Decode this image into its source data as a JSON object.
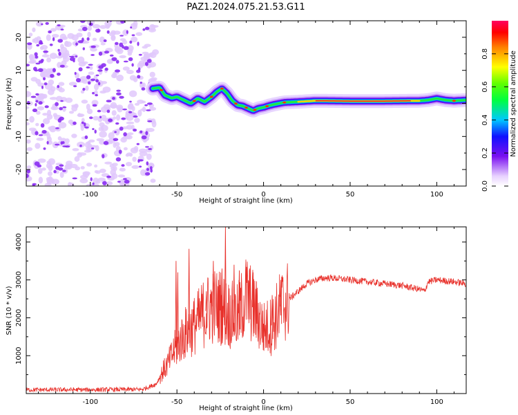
{
  "figure": {
    "title": "PAZ1.2024.075.21.53.G11"
  },
  "chart_data": [
    {
      "type": "heatmap",
      "xlabel": "Height of straight line (km)",
      "ylabel": "Frequency (Hz)",
      "xlim": [
        -137,
        117
      ],
      "ylim": [
        -25,
        25
      ],
      "xticks": [
        -100,
        -50,
        0,
        50,
        100
      ],
      "yticks": [
        -20,
        -10,
        0,
        10,
        20
      ],
      "noise_region_x": [
        -137,
        -64
      ],
      "ridge": {
        "x": [
          -64,
          -60,
          -57,
          -53,
          -50,
          -46,
          -42,
          -38,
          -34,
          -30,
          -27,
          -24,
          -21,
          -18,
          -15,
          -12,
          -9,
          -6,
          -3,
          0,
          3,
          6,
          9,
          12,
          20,
          30,
          50,
          70,
          90,
          95,
          100,
          105,
          110,
          117
        ],
        "y": [
          4.5,
          4.8,
          2.5,
          1.6,
          2.0,
          1.0,
          0.0,
          1.5,
          0.5,
          2.0,
          3.5,
          4.5,
          3.0,
          0.8,
          -0.5,
          -0.8,
          -1.5,
          -2.2,
          -1.5,
          -1.2,
          -0.7,
          -0.3,
          0.0,
          0.3,
          0.5,
          0.8,
          0.7,
          0.7,
          0.8,
          1.0,
          1.5,
          1.0,
          0.8,
          1.0
        ]
      },
      "colorbar": {
        "label": "Normalized spectral amplitude",
        "range": [
          0,
          1
        ],
        "ticks": [
          0.0,
          0.2,
          0.4,
          0.6,
          0.8
        ],
        "tick_labels": [
          "0.0",
          "0.2",
          "0.4",
          "0.6",
          "0.8"
        ]
      }
    },
    {
      "type": "line",
      "xlabel": "Height of straight line (km)",
      "ylabel": "SNR (10 * v/v)",
      "xlim": [
        -137,
        117
      ],
      "ylim": [
        0,
        4400
      ],
      "xticks": [
        -100,
        -50,
        0,
        50,
        100
      ],
      "yticks": [
        1000,
        2000,
        3000,
        4000
      ],
      "series": [
        {
          "color": "#e8302a",
          "envelope": {
            "x": [
              -137,
              -100,
              -70,
              -62,
              -58,
              -55,
              -52,
              -48,
              -45,
              -42,
              -38,
              -35,
              -30,
              -25,
              -20,
              -15,
              -10,
              -5,
              0,
              5,
              10,
              15,
              20,
              25,
              30,
              35,
              40,
              50,
              60,
              70,
              80,
              90,
              93,
              95,
              100,
              110,
              117
            ],
            "y": [
              100,
              100,
              110,
              250,
              600,
              800,
              1100,
              1400,
              1600,
              1700,
              1900,
              2100,
              2300,
              2300,
              2100,
              2000,
              2600,
              2200,
              1700,
              1800,
              2300,
              2500,
              2700,
              2900,
              3000,
              3050,
              3050,
              3000,
              2950,
              2900,
              2850,
              2750,
              2700,
              2950,
              3000,
              2950,
              2900
            ]
          },
          "spikes": [
            {
              "x": -50.5,
              "y": 3500
            },
            {
              "x": -49.5,
              "y": 3200
            },
            {
              "x": -43,
              "y": 3820
            },
            {
              "x": -33,
              "y": 2700
            },
            {
              "x": -29,
              "y": 3500
            },
            {
              "x": -24,
              "y": 3300
            },
            {
              "x": -22,
              "y": 4400
            },
            {
              "x": -17,
              "y": 3400
            },
            {
              "x": -14,
              "y": 3250
            },
            {
              "x": -6,
              "y": 3200
            },
            {
              "x": 5,
              "y": 2600
            },
            {
              "x": 10,
              "y": 3000
            }
          ]
        }
      ]
    }
  ]
}
